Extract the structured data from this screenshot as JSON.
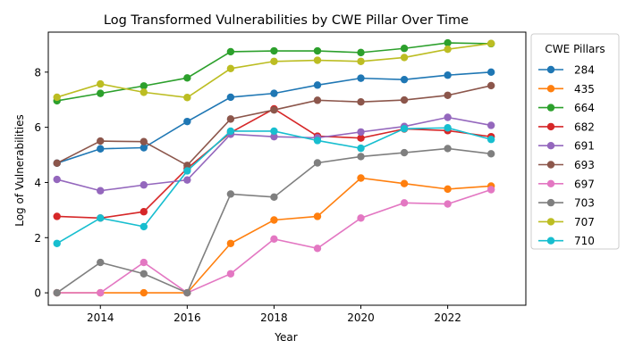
{
  "chart_data": {
    "type": "line",
    "title": "Log Transformed Vulnerabilities by CWE Pillar Over Time",
    "xlabel": "Year",
    "ylabel": "Log of Vulnerabilities",
    "x": [
      2013,
      2014,
      2015,
      2016,
      2017,
      2018,
      2019,
      2020,
      2021,
      2022,
      2023
    ],
    "xlim": [
      2012.8,
      2023.8
    ],
    "xticks": [
      2014,
      2016,
      2018,
      2020,
      2022
    ],
    "ylim": [
      -0.45,
      9.45
    ],
    "yticks": [
      0,
      2,
      4,
      6,
      8
    ],
    "grid": false,
    "legend": {
      "title": "CWE Pillars",
      "placement": "right-outside"
    },
    "series": [
      {
        "name": "284",
        "color": "#1f77b4",
        "values": [
          4.7,
          5.22,
          5.26,
          6.21,
          7.09,
          7.23,
          7.53,
          7.78,
          7.73,
          7.89,
          8.0
        ]
      },
      {
        "name": "435",
        "color": "#ff7f0e",
        "values": [
          0.0,
          0.0,
          0.0,
          0.0,
          1.79,
          2.64,
          2.77,
          4.16,
          3.96,
          3.76,
          3.87
        ]
      },
      {
        "name": "664",
        "color": "#2ca02c",
        "values": [
          6.96,
          7.23,
          7.5,
          7.79,
          8.74,
          8.77,
          8.77,
          8.71,
          8.86,
          9.06,
          9.03
        ]
      },
      {
        "name": "682",
        "color": "#d62728",
        "values": [
          2.77,
          2.71,
          2.94,
          4.51,
          5.81,
          6.67,
          5.68,
          5.61,
          5.94,
          5.88,
          5.66
        ]
      },
      {
        "name": "691",
        "color": "#9467bd",
        "values": [
          4.11,
          3.7,
          3.91,
          4.09,
          5.75,
          5.66,
          5.62,
          5.83,
          6.03,
          6.36,
          6.07
        ]
      },
      {
        "name": "693",
        "color": "#8c564b",
        "values": [
          4.7,
          5.5,
          5.48,
          4.62,
          6.3,
          6.63,
          6.98,
          6.92,
          6.99,
          7.16,
          7.51
        ]
      },
      {
        "name": "697",
        "color": "#e377c2",
        "values": [
          0.0,
          0.0,
          1.1,
          0.0,
          0.69,
          1.95,
          1.61,
          2.71,
          3.26,
          3.22,
          3.74
        ]
      },
      {
        "name": "703",
        "color": "#7f7f7f",
        "values": [
          0.0,
          1.1,
          0.69,
          0.0,
          3.58,
          3.47,
          4.71,
          4.94,
          5.08,
          5.23,
          5.04
        ]
      },
      {
        "name": "707",
        "color": "#bcbd22",
        "values": [
          7.09,
          7.57,
          7.27,
          7.08,
          8.13,
          8.39,
          8.43,
          8.39,
          8.53,
          8.83,
          9.04
        ]
      },
      {
        "name": "710",
        "color": "#17becf",
        "values": [
          1.79,
          2.71,
          2.4,
          4.42,
          5.86,
          5.86,
          5.52,
          5.24,
          5.95,
          5.98,
          5.56
        ]
      }
    ]
  }
}
